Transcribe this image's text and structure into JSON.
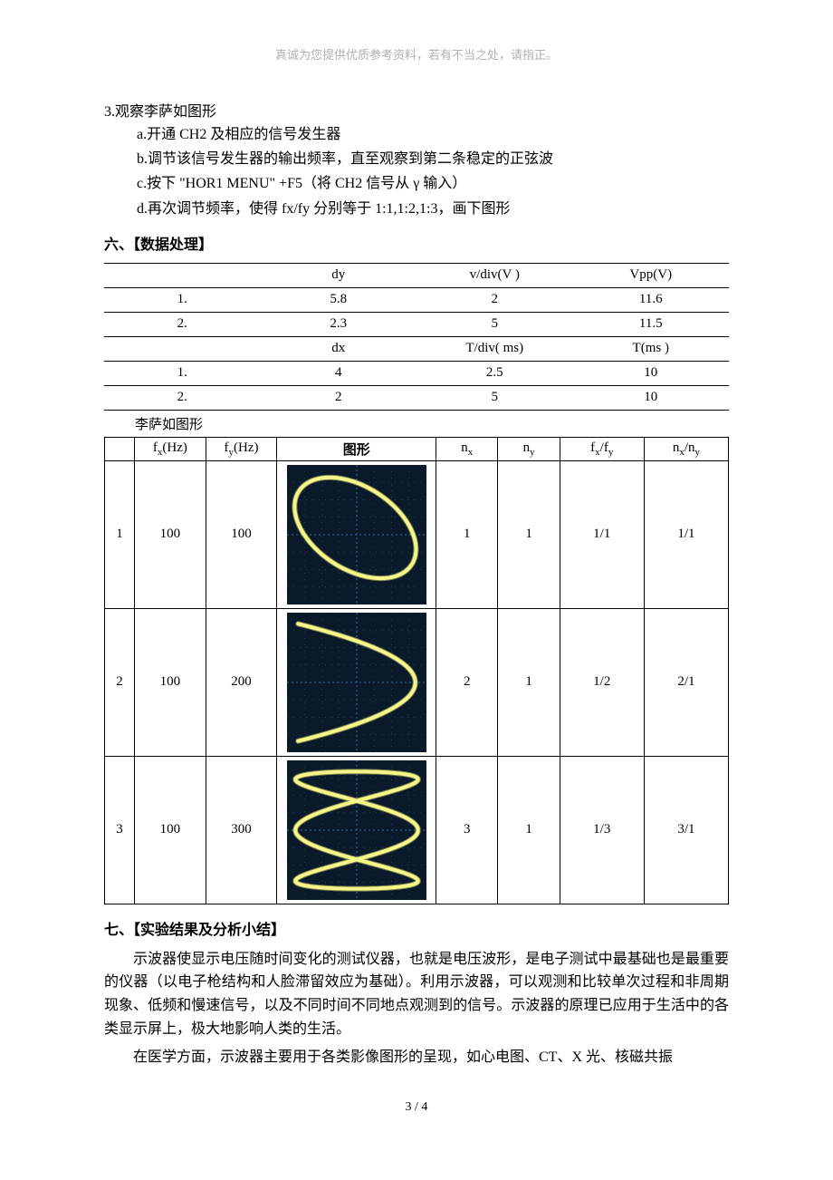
{
  "header_note": "真诚为您提供优质参考资料，若有不当之处，请指正。",
  "section3": {
    "title": "3.观察李萨如图形",
    "items": [
      "a.开通 CH2 及相应的信号发生器",
      "b.调节该信号发生器的输出频率，直至观察到第二条稳定的正弦波",
      "c.按下 \"HOR1 MENU\" +F5（将 CH2 信号从 γ 输入）",
      "d.再次调节频率，使得 fx/fy 分别等于 1:1,1:2,1:3，画下图形"
    ]
  },
  "section6_head": "六、【数据处理】",
  "table1": {
    "row1": {
      "c0": "",
      "c1": "dy",
      "c2": "v/div(V )",
      "c3": "Vpp(V)"
    },
    "row2": {
      "c0": "1.",
      "c1": "5.8",
      "c2": "2",
      "c3": "11.6"
    },
    "row3": {
      "c0": "2.",
      "c1": "2.3",
      "c2": "5",
      "c3": "11.5"
    },
    "row4": {
      "c0": "",
      "c1": "dx",
      "c2": "T/div( ms)",
      "c3": "T(ms )"
    },
    "row5": {
      "c0": "1.",
      "c1": "4",
      "c2": "2.5",
      "c3": "10"
    },
    "row6": {
      "c0": "2.",
      "c1": "2",
      "c2": "5",
      "c3": "10"
    }
  },
  "lissa_caption": "李萨如图形",
  "table2": {
    "headers": {
      "h0": "",
      "h1": "fx(Hz)",
      "h1_main": "f",
      "h1_sub": "x",
      "h1_tail": "(Hz)",
      "h2_main": "f",
      "h2_sub": "y",
      "h2_tail": "(Hz)",
      "h3": "图形",
      "h4_main": "n",
      "h4_sub": "x",
      "h5_main": "n",
      "h5_sub": "y",
      "h6_main": "f",
      "h6_sub1": "x",
      "h6_mid": "/f",
      "h6_sub2": "y",
      "h7_main": "n",
      "h7_sub1": "x",
      "h7_mid": "/n",
      "h7_sub2": "y"
    },
    "rows": [
      {
        "idx": "1",
        "fx": "100",
        "fy": "100",
        "nx": "1",
        "ny": "1",
        "fxfy": "1/1",
        "nxny": "1/1",
        "pattern": "1_1"
      },
      {
        "idx": "2",
        "fx": "100",
        "fy": "200",
        "nx": "2",
        "ny": "1",
        "fxfy": "1/2",
        "nxny": "2/1",
        "pattern": "1_2"
      },
      {
        "idx": "3",
        "fx": "100",
        "fy": "300",
        "nx": "3",
        "ny": "1",
        "fxfy": "1/3",
        "nxny": "3/1",
        "pattern": "1_3"
      }
    ]
  },
  "section7_head": "七、【实验结果及分析小结】",
  "para1": "示波器使显示电压随时间变化的测试仪器，也就是电压波形，是电子测试中最基础也是最重要的仪器（以电子枪结构和人脸滞留效应为基础）。利用示波器，可以观测和比较单次过程和非周期现象、低频和慢速信号，以及不同时间不同地点观测到的信号。示波器的原理已应用于生活中的各类显示屏上，极大地影响人类的生活。",
  "para2": "在医学方面，示波器主要用于各类影像图形的呈现，如心电图、CT、X 光、核磁共振",
  "footer": "3 / 4",
  "colors": {
    "scope_bg": "#0a1a2a",
    "grid": "#2e6fae",
    "grid_dim": "#1d4060",
    "trace": "#f5f58a",
    "trace_glow": "#e8e870"
  },
  "scope": {
    "size": 154,
    "grid_divs": 8,
    "trace_stroke_width": 4,
    "grid_stroke_width": 1,
    "dot_r": 0.8
  }
}
